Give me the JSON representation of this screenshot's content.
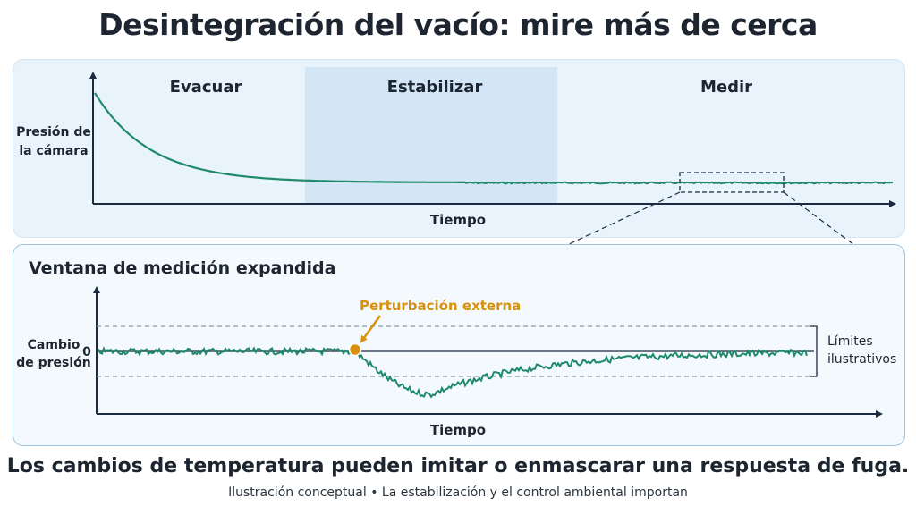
{
  "title": "Desintegración del vacío: mire más de cerca",
  "top_chart": {
    "phases": [
      "Evacuar",
      "Estabilizar",
      "Medir"
    ],
    "y_label_line1": "Presión de",
    "y_label_line2": "la cámara",
    "x_label": "Tiempo"
  },
  "bottom_chart": {
    "title": "Ventana de medición expandida",
    "y_label_line1": "Cambio",
    "y_label_line2": "de presión",
    "zero_tick": "0",
    "disturbance_label": "Perturbación externa",
    "limits_line1": "Límites",
    "limits_line2": "ilustrativos",
    "x_label": "Tiempo"
  },
  "caption": "Los cambios de temperatura pueden imitar o enmascarar una respuesta de fuga.",
  "subcaption": "Ilustración conceptual • La estabilización y el control ambiental importan",
  "colors": {
    "curve": "#1f8a6a",
    "disturbance": "#d8900f",
    "axis": "#1c2a40",
    "stabilize_band": "#d3e6f6"
  }
}
